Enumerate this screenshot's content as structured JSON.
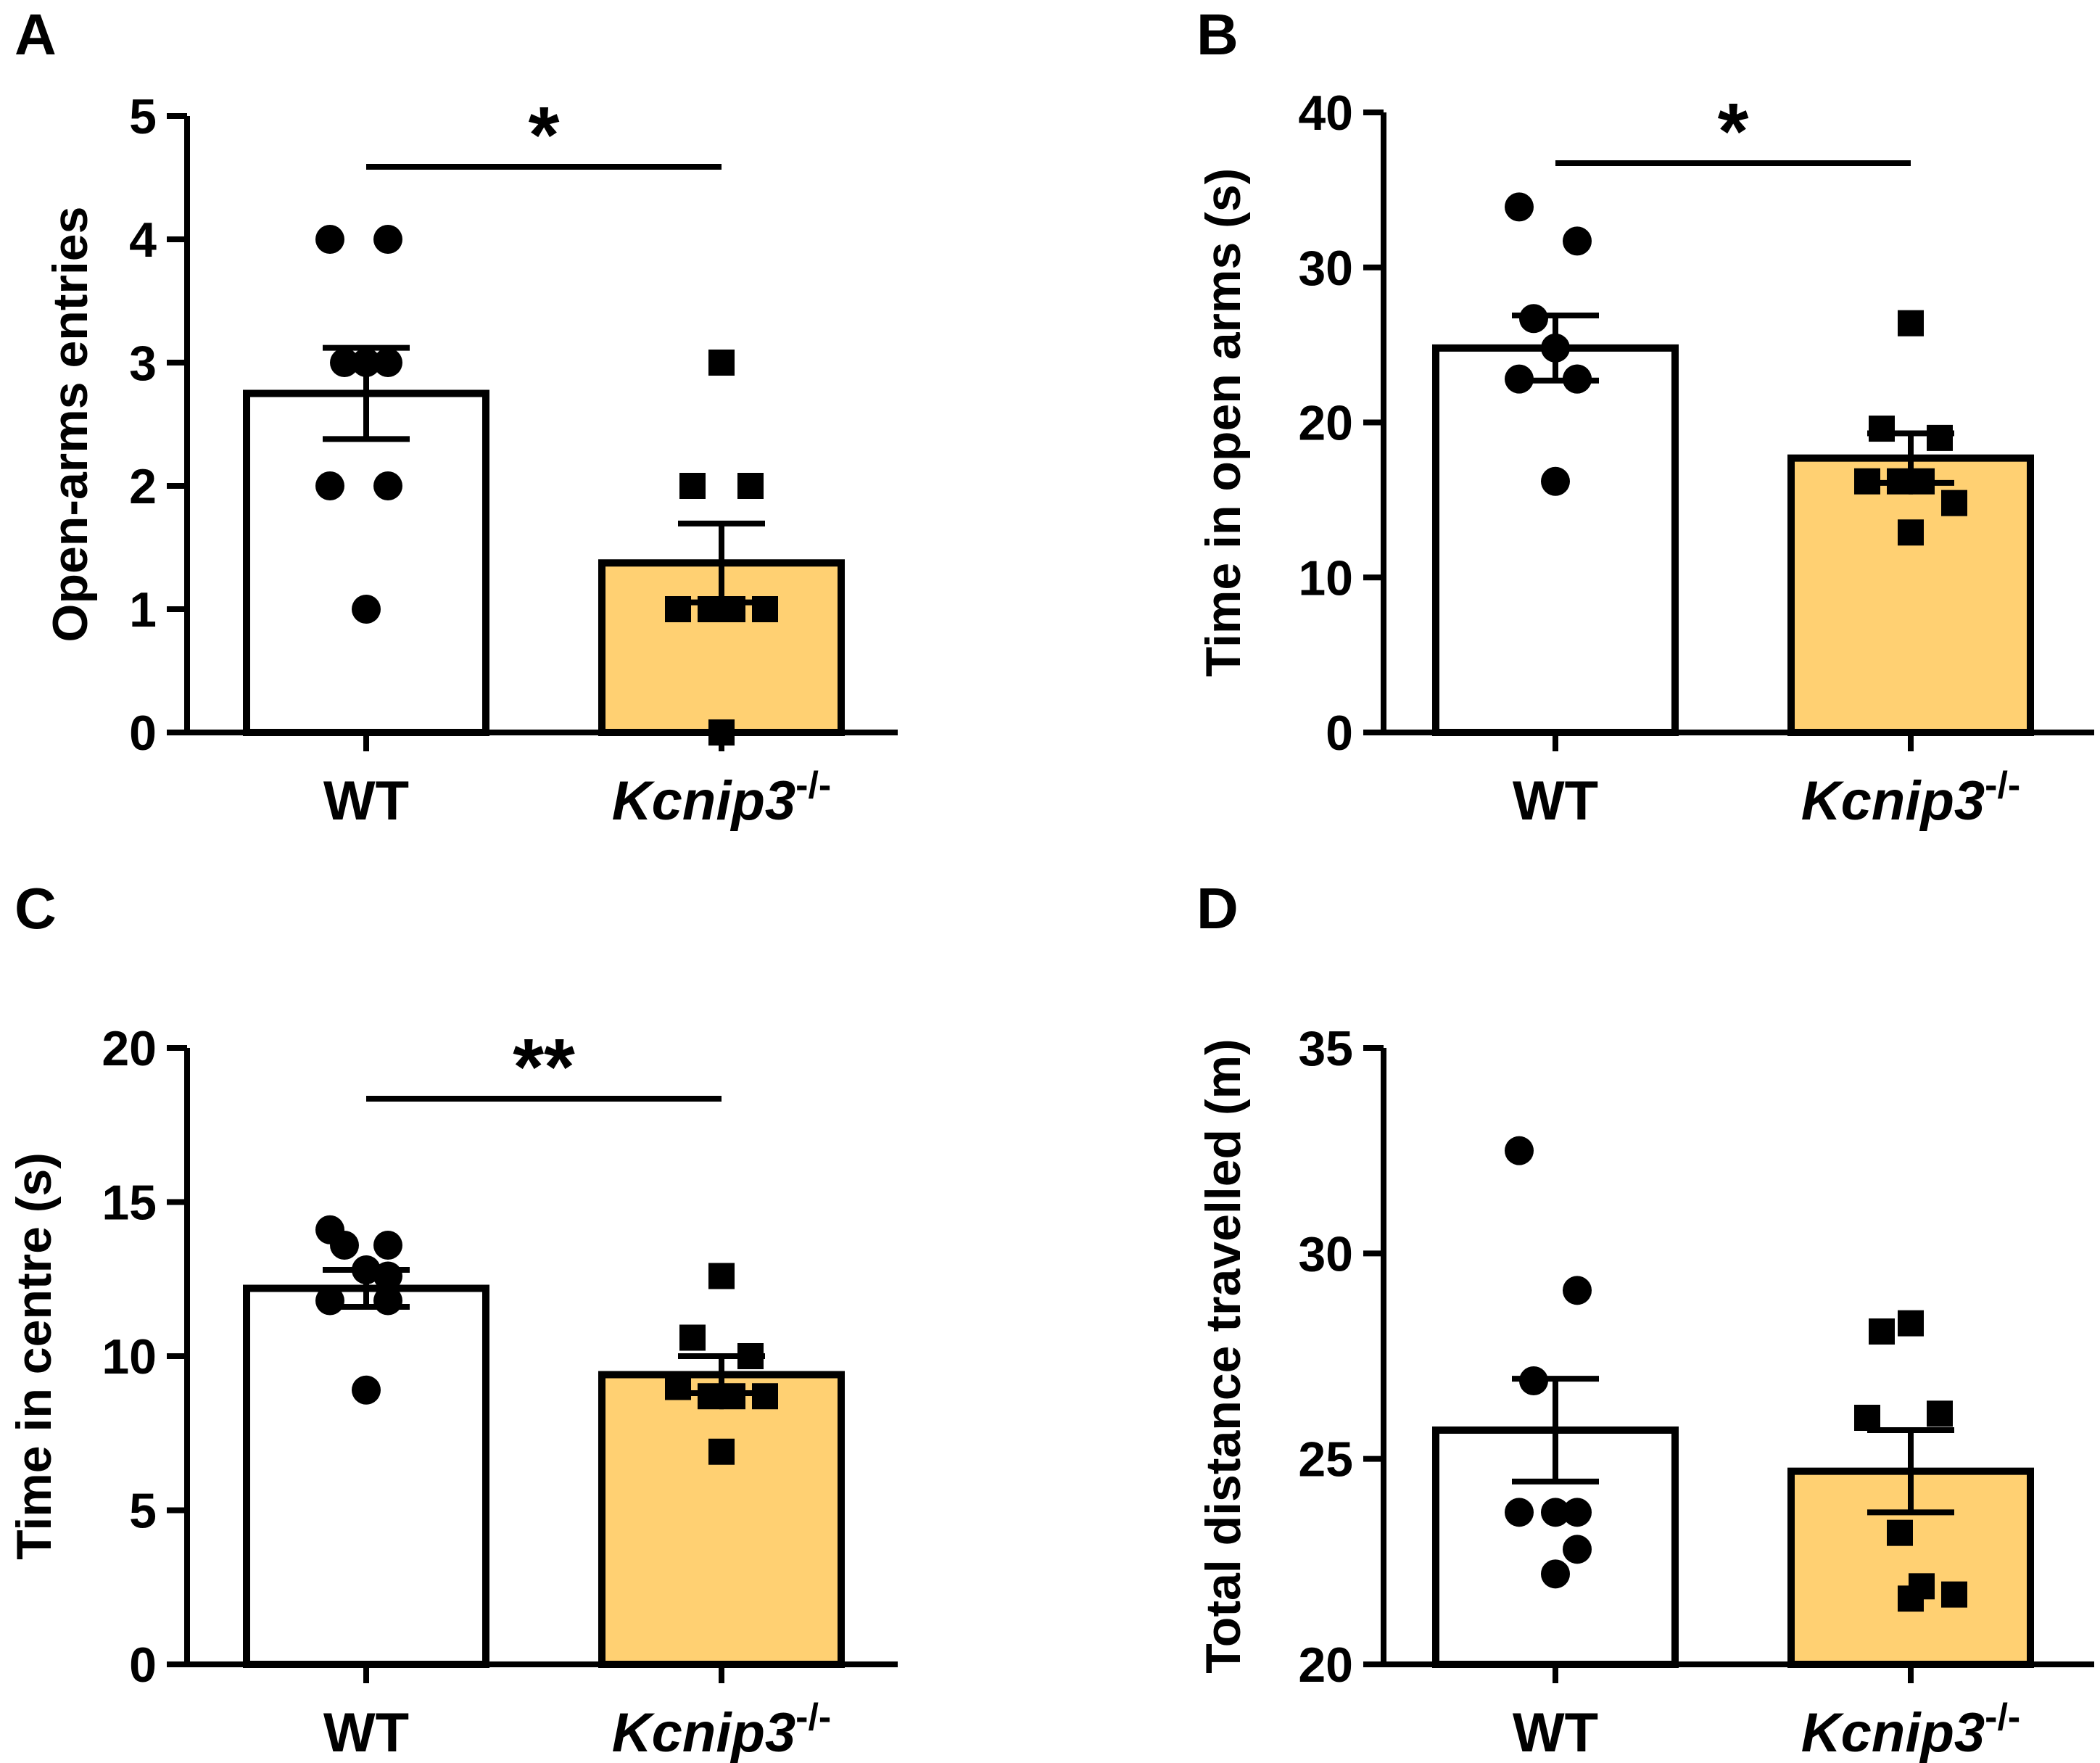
{
  "figure": {
    "colors": {
      "wt_bar": "#ffffff",
      "ko_bar": "#ffd072",
      "stroke": "#000000"
    }
  },
  "chart_data": [
    {
      "type": "bar",
      "panel": "A",
      "categories": [
        "WT",
        "Kcnip3"
      ],
      "category_superscripts": [
        "",
        "-/-"
      ],
      "series": [
        {
          "name": "mean",
          "values": [
            2.75,
            1.375
          ]
        }
      ],
      "sem": [
        0.37,
        0.32
      ],
      "points": [
        [
          4,
          4,
          3,
          3,
          3,
          2,
          2,
          1
        ],
        [
          3,
          2,
          2,
          1,
          1,
          1,
          1,
          0
        ]
      ],
      "ylabel": "Open-arms entries",
      "ylim": [
        0,
        5
      ],
      "yticks": [
        "0",
        "1",
        "2",
        "3",
        "4",
        "5"
      ],
      "significance": "*"
    },
    {
      "type": "bar",
      "panel": "B",
      "categories": [
        "WT",
        "Kcnip3"
      ],
      "category_superscripts": [
        "",
        "-/-"
      ],
      "series": [
        {
          "name": "mean",
          "values": [
            24.8,
            17.7
          ]
        }
      ],
      "sem": [
        2.1,
        1.6
      ],
      "points": [
        [
          33.9,
          31.7,
          26.7,
          24.8,
          22.8,
          22.8,
          22.8,
          16.2
        ],
        [
          26.4,
          19.6,
          19.0,
          16.2,
          16.2,
          16.2,
          14.8,
          12.9
        ]
      ],
      "ylabel": "Time in open arms (s)",
      "ylim": [
        0,
        40
      ],
      "yticks": [
        "0",
        "10",
        "20",
        "30",
        "40"
      ],
      "significance": "*"
    },
    {
      "type": "bar",
      "panel": "C",
      "categories": [
        "WT",
        "Kcnip3"
      ],
      "category_superscripts": [
        "",
        "-/-"
      ],
      "series": [
        {
          "name": "mean",
          "values": [
            12.2,
            9.4
          ]
        }
      ],
      "sem": [
        0.6,
        0.6
      ],
      "points": [
        [
          14.1,
          13.6,
          13.6,
          12.8,
          12.6,
          11.8,
          11.8,
          8.9
        ],
        [
          12.6,
          10.6,
          10.0,
          9.0,
          8.7,
          8.7,
          8.7,
          6.9
        ]
      ],
      "ylabel": "Time in centre (s)",
      "ylim": [
        0,
        20
      ],
      "yticks": [
        "0",
        "5",
        "10",
        "15",
        "20"
      ],
      "significance": "**"
    },
    {
      "type": "bar",
      "panel": "D",
      "categories": [
        "WT",
        "Kcnip3"
      ],
      "category_superscripts": [
        "",
        "-/-"
      ],
      "series": [
        {
          "name": "mean",
          "values": [
            25.7,
            24.7
          ]
        }
      ],
      "sem": [
        1.25,
        1.0
      ],
      "points": [
        [
          32.5,
          29.1,
          26.9,
          23.7,
          23.7,
          23.7,
          22.8,
          22.2
        ],
        [
          28.3,
          28.1,
          26.1,
          26.0,
          23.2,
          21.9,
          21.7,
          21.6
        ]
      ],
      "ylabel": "Total distance travelled (m)",
      "ylim": [
        20,
        35
      ],
      "yticks": [
        "20",
        "25",
        "30",
        "35"
      ],
      "significance": ""
    }
  ]
}
